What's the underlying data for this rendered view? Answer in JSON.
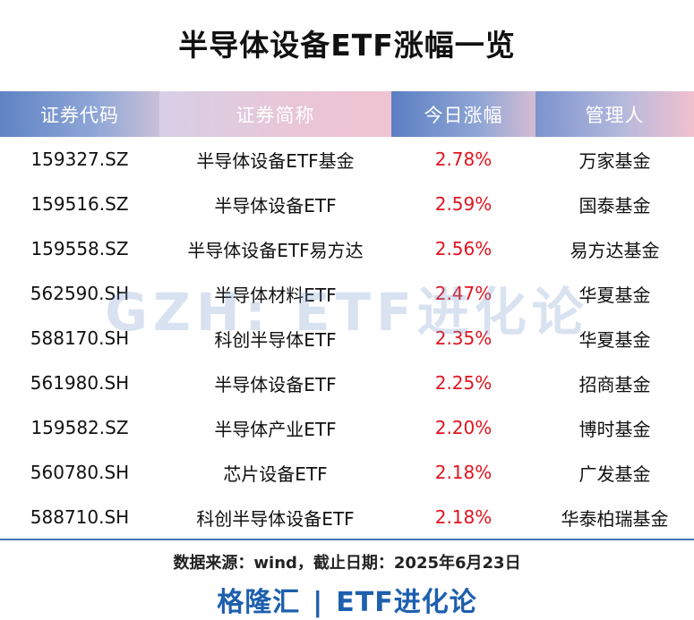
{
  "title": "半导体设备ETF涨幅一览",
  "table": {
    "headers": [
      "证券代码",
      "证券简称",
      "今日涨幅",
      "管理人"
    ],
    "rows": [
      {
        "code": "159327.SZ",
        "name": "半导体设备ETF基金",
        "change": "2.78%",
        "manager": "万家基金"
      },
      {
        "code": "159516.SZ",
        "name": "半导体设备ETF",
        "change": "2.59%",
        "manager": "国泰基金"
      },
      {
        "code": "159558.SZ",
        "name": "半导体设备ETF易方达",
        "change": "2.56%",
        "manager": "易方达基金"
      },
      {
        "code": "562590.SH",
        "name": "半导体材料ETF",
        "change": "2.47%",
        "manager": "华夏基金"
      },
      {
        "code": "588170.SH",
        "name": "科创半导体ETF",
        "change": "2.35%",
        "manager": "华夏基金"
      },
      {
        "code": "561980.SH",
        "name": "半导体设备ETF",
        "change": "2.25%",
        "manager": "招商基金"
      },
      {
        "code": "159582.SZ",
        "name": "半导体产业ETF",
        "change": "2.20%",
        "manager": "博时基金"
      },
      {
        "code": "560780.SH",
        "name": "芯片设备ETF",
        "change": "2.18%",
        "manager": "广发基金"
      },
      {
        "code": "588710.SH",
        "name": "科创半导体设备ETF",
        "change": "2.18%",
        "manager": "华泰柏瑞基金"
      }
    ]
  },
  "watermark": "GZH: ETF进化论",
  "source": "数据来源：wind，截止日期：2025年6月23日",
  "footer": {
    "left": "格隆汇",
    "separator": "|",
    "right": "ETF进化论"
  },
  "colors": {
    "up": "#e0141e",
    "header_blue": "#5f83c4",
    "header_pink": "#f0c3d1",
    "footer_blue": "#1e5fae",
    "divider": "#4a74b5"
  }
}
